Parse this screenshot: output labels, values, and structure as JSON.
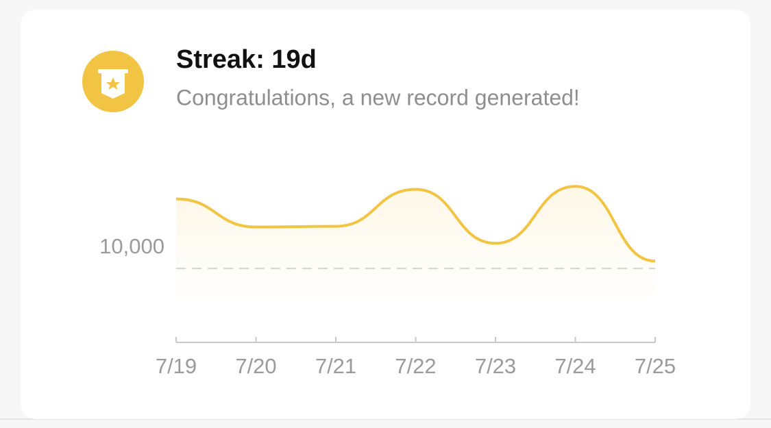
{
  "header": {
    "title": "Streak: 19d",
    "subtitle": "Congratulations, a new record generated!"
  },
  "chart_data": {
    "type": "line",
    "categories": [
      "7/19",
      "7/20",
      "7/21",
      "7/22",
      "7/23",
      "7/24",
      "7/25"
    ],
    "values": [
      19400,
      15600,
      15700,
      20700,
      13400,
      21100,
      11000
    ],
    "color": "#f2c443",
    "ylim": [
      0,
      23000
    ],
    "yticks": [
      {
        "value": 10000,
        "label": "10,000"
      }
    ],
    "grid": true
  }
}
